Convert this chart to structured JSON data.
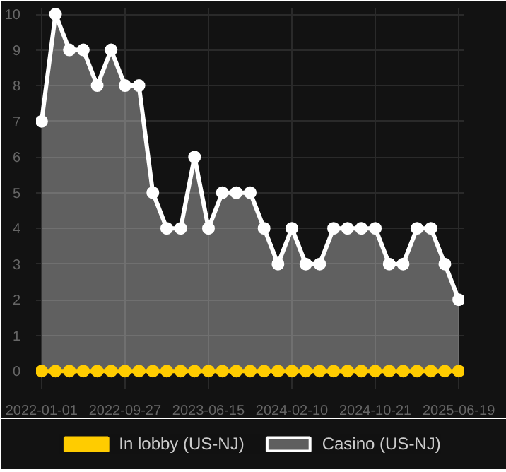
{
  "chart_data": {
    "type": "area",
    "categories": [
      "2022-01-01",
      null,
      null,
      null,
      null,
      null,
      "2022-09-27",
      null,
      null,
      null,
      null,
      null,
      "2023-06-15",
      null,
      null,
      null,
      null,
      null,
      "2024-02-10",
      null,
      null,
      null,
      null,
      null,
      "2024-10-21",
      null,
      null,
      null,
      null,
      null,
      "2025-06-19"
    ],
    "series": [
      {
        "name": "In lobby (US-NJ)",
        "type": "line",
        "color": "#ffcc00",
        "values": [
          0,
          0,
          0,
          0,
          0,
          0,
          0,
          0,
          0,
          0,
          0,
          0,
          0,
          0,
          0,
          0,
          0,
          0,
          0,
          0,
          0,
          0,
          0,
          0,
          0,
          0,
          0,
          0,
          0,
          0,
          0
        ]
      },
      {
        "name": "Casino (US-NJ)",
        "color": "#ffffff",
        "values": [
          7,
          10,
          9,
          9,
          8,
          9,
          8,
          8,
          5,
          4,
          4,
          6,
          4,
          5,
          5,
          5,
          4,
          3,
          4,
          3,
          3,
          4,
          4,
          4,
          4,
          3,
          3,
          4,
          4,
          3,
          2
        ]
      }
    ],
    "ylim": [
      0,
      10
    ],
    "yticks": [
      0,
      1,
      2,
      3,
      4,
      5,
      6,
      7,
      8,
      9,
      10
    ],
    "grid": true,
    "legend": "bottom",
    "marker": "circle",
    "line_style": "solid"
  }
}
